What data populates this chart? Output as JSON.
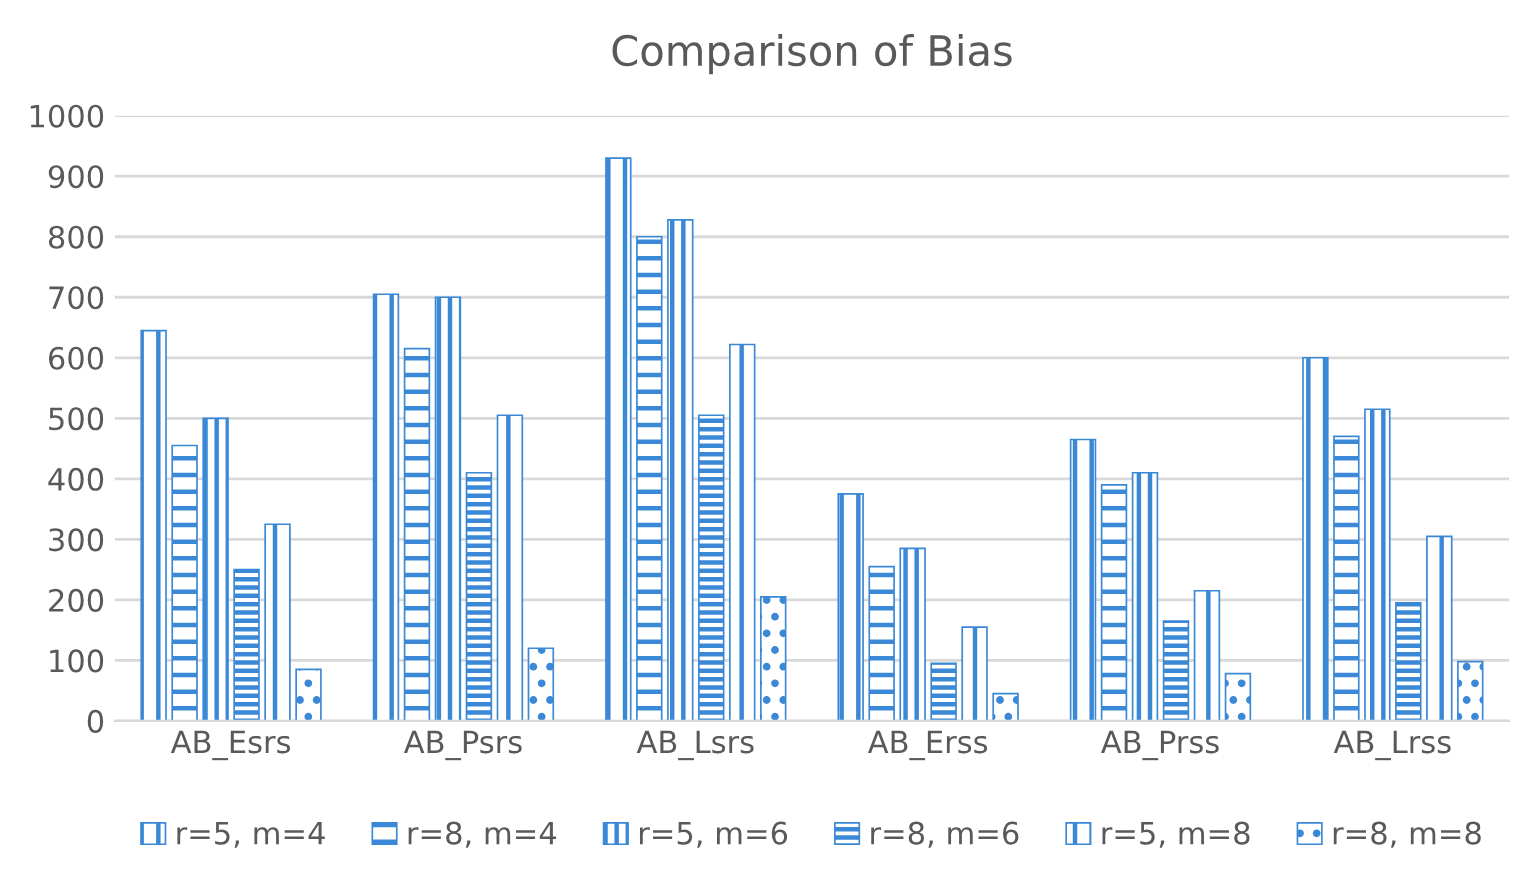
{
  "chart_data": {
    "type": "bar",
    "title": "Comparison of Bias",
    "categories": [
      "AB_Esrs",
      "AB_Psrs",
      "AB_Lsrs",
      "AB_Erss",
      "AB_Prss",
      "AB_Lrss"
    ],
    "series": [
      {
        "name": "r=5, m=4",
        "color": "#3a88d6",
        "values": [
          645,
          705,
          930,
          375,
          465,
          600
        ]
      },
      {
        "name": "r=8, m=4",
        "color": "#3a88d6",
        "values": [
          455,
          615,
          800,
          255,
          390,
          470
        ]
      },
      {
        "name": "r=5, m=6",
        "color": "#3a88d6",
        "values": [
          500,
          700,
          828,
          285,
          410,
          515
        ]
      },
      {
        "name": "r=8, m=6",
        "color": "#3a88d6",
        "values": [
          250,
          410,
          505,
          95,
          165,
          195
        ]
      },
      {
        "name": "r=5, m=8",
        "color": "#3a88d6",
        "values": [
          325,
          505,
          622,
          155,
          215,
          305
        ]
      },
      {
        "name": "r=8, m=8",
        "color": "#3a88d6",
        "values": [
          85,
          120,
          205,
          45,
          78,
          98
        ]
      }
    ],
    "ylim": [
      0,
      1000
    ],
    "yticks": [
      0,
      100,
      200,
      300,
      400,
      500,
      600,
      700,
      800,
      900,
      1000
    ],
    "grid": "y",
    "legend": "bottom"
  }
}
